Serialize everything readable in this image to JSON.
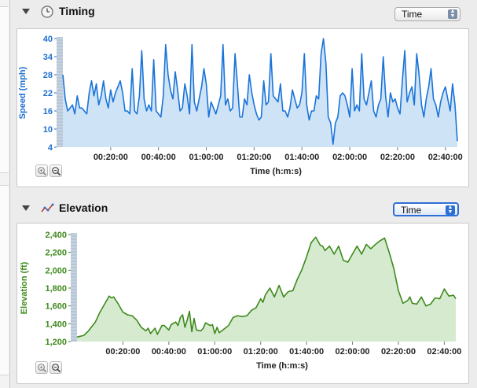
{
  "timing": {
    "title": "Timing",
    "select_value": "Time",
    "icon": "clock-icon",
    "zoom_in_icon": "zoom-in-icon",
    "zoom_out_icon": "zoom-out-icon"
  },
  "elevation": {
    "title": "Elevation",
    "select_value": "Time",
    "icon": "elevation-graph-icon",
    "zoom_in_icon": "zoom-in-icon",
    "zoom_out_icon": "zoom-out-icon"
  },
  "colors": {
    "speed_line": "#1a74d8",
    "speed_fill": "#cfe3f7",
    "speed_axis_text": "#1f6fd0",
    "elev_line": "#3e8a1c",
    "elev_fill": "#d6ead0",
    "elev_axis_text": "#3f8a1e",
    "select_active": "#2d6fd6"
  },
  "chart_data": [
    {
      "type": "area",
      "title": "",
      "xlabel": "Time (h:m:s)",
      "ylabel": "Speed (mph)",
      "y_ticks": [
        "40",
        "34",
        "28",
        "22",
        "16",
        "10",
        "4"
      ],
      "x_ticks": [
        "00:20:00",
        "00:40:00",
        "01:00:00",
        "01:20:00",
        "01:40:00",
        "02:00:00",
        "02:20:00",
        "02:40:00"
      ],
      "ylim": [
        4,
        40
      ],
      "xlim_minutes": [
        0,
        165
      ],
      "grid": false,
      "series": [
        {
          "x": [
            0,
            1,
            2,
            3,
            4,
            5,
            6,
            7,
            8,
            9,
            10,
            11,
            12,
            13,
            14,
            15,
            16,
            17,
            18,
            19,
            20,
            21,
            22,
            23,
            24,
            25,
            26,
            27,
            28,
            29,
            30,
            31,
            32,
            33,
            34,
            35,
            36,
            37,
            38,
            39,
            40,
            41,
            42,
            43,
            44,
            45,
            46,
            47,
            48,
            49,
            50,
            51,
            52,
            53,
            54,
            55,
            56,
            57,
            58,
            59,
            60,
            61,
            62,
            63,
            64,
            65,
            66,
            67,
            68,
            69,
            70,
            71,
            72,
            73,
            74,
            75,
            76,
            77,
            78,
            79,
            80,
            81,
            82,
            83,
            84,
            85,
            86,
            87,
            88,
            89,
            90,
            91,
            92,
            93,
            94,
            95,
            96,
            97,
            98,
            99,
            100,
            101,
            102,
            103,
            104,
            105,
            106,
            107,
            108,
            109,
            110,
            111,
            112,
            113,
            114,
            115,
            116,
            117,
            118,
            119,
            120,
            121,
            122,
            123,
            124,
            125,
            126,
            127,
            128,
            129,
            130,
            131,
            132,
            133,
            134,
            135,
            136,
            137,
            138,
            139,
            140,
            141,
            142,
            143,
            144,
            145,
            146,
            147,
            148,
            149,
            150,
            151,
            152,
            153,
            154,
            155,
            156,
            157,
            158,
            159,
            160,
            161,
            162,
            163,
            164,
            165
          ],
          "y": [
            28,
            20,
            16,
            17,
            18,
            15,
            21,
            17,
            17,
            16,
            15,
            22,
            26,
            21,
            25,
            18,
            21,
            26,
            20,
            17,
            23,
            19,
            22,
            24,
            26,
            22,
            16,
            16,
            15,
            30,
            16,
            15,
            21,
            36,
            20,
            16,
            18,
            16,
            33,
            16,
            15,
            14,
            21,
            38,
            28,
            23,
            20,
            29,
            23,
            16,
            17,
            25,
            21,
            15,
            38,
            19,
            16,
            20,
            24,
            30,
            25,
            14,
            19,
            17,
            15,
            18,
            21,
            38,
            18,
            20,
            16,
            17,
            35,
            25,
            14,
            14,
            20,
            18,
            28,
            22,
            18,
            15,
            13,
            14,
            26,
            18,
            19,
            35,
            21,
            20,
            19,
            25,
            16,
            16,
            14,
            17,
            23,
            20,
            17,
            18,
            22,
            35,
            18,
            13,
            16,
            16,
            21,
            20,
            35,
            40,
            32,
            14,
            12,
            5,
            12,
            14,
            21,
            22,
            21,
            18,
            14,
            30,
            16,
            18,
            16,
            35,
            20,
            18,
            22,
            26,
            16,
            14,
            18,
            20,
            34,
            21,
            14,
            22,
            19,
            20,
            17,
            15,
            26,
            36,
            19,
            22,
            24,
            18,
            35,
            28,
            18,
            14,
            20,
            24,
            30,
            20,
            18,
            14,
            19,
            22,
            24,
            20,
            16,
            25,
            18,
            6
          ]
        }
      ]
    },
    {
      "type": "area",
      "title": "",
      "xlabel": "Time (h:m:s)",
      "ylabel": "Elevation (ft)",
      "y_ticks": [
        "2,400",
        "2,200",
        "2,000",
        "1,800",
        "1,600",
        "1,400",
        "1,200"
      ],
      "x_ticks": [
        "00:20:00",
        "00:40:00",
        "01:00:00",
        "01:20:00",
        "01:40:00",
        "02:00:00",
        "02:20:00",
        "02:40:00"
      ],
      "ylim": [
        1200,
        2400
      ],
      "xlim_minutes": [
        0,
        165
      ],
      "grid": false,
      "series": [
        {
          "x": [
            0,
            3,
            5,
            8,
            10,
            12,
            14,
            15,
            16,
            18,
            20,
            22,
            24,
            26,
            28,
            30,
            31,
            32,
            34,
            35,
            37,
            38,
            40,
            41,
            43,
            44,
            45,
            46,
            47,
            48,
            49,
            50,
            51,
            52,
            54,
            55,
            56,
            58,
            59,
            60,
            61,
            62,
            64,
            66,
            68,
            70,
            72,
            74,
            76,
            78,
            80,
            81,
            82,
            84,
            86,
            88,
            90,
            92,
            94,
            96,
            98,
            100,
            102,
            104,
            106,
            107,
            108,
            110,
            112,
            114,
            116,
            118,
            120,
            122,
            124,
            126,
            128,
            130,
            132,
            134,
            136,
            138,
            140,
            142,
            144,
            145,
            146,
            148,
            150,
            152,
            154,
            156,
            158,
            160,
            162,
            164,
            165
          ],
          "y": [
            1250,
            1270,
            1320,
            1420,
            1530,
            1620,
            1710,
            1690,
            1700,
            1620,
            1530,
            1500,
            1490,
            1440,
            1360,
            1320,
            1350,
            1290,
            1350,
            1280,
            1380,
            1380,
            1330,
            1390,
            1420,
            1380,
            1470,
            1500,
            1360,
            1440,
            1540,
            1310,
            1460,
            1330,
            1320,
            1350,
            1410,
            1380,
            1390,
            1290,
            1360,
            1300,
            1340,
            1380,
            1470,
            1490,
            1480,
            1490,
            1550,
            1580,
            1680,
            1640,
            1720,
            1800,
            1700,
            1830,
            1700,
            1760,
            1770,
            1900,
            2010,
            2150,
            2310,
            2370,
            2280,
            2270,
            2220,
            2270,
            2180,
            2270,
            2110,
            2090,
            2180,
            2270,
            2180,
            2290,
            2240,
            2290,
            2330,
            2360,
            2200,
            2020,
            1770,
            1630,
            1660,
            1700,
            1630,
            1620,
            1700,
            1600,
            1620,
            1690,
            1680,
            1790,
            1710,
            1720,
            1680
          ]
        }
      ]
    }
  ]
}
